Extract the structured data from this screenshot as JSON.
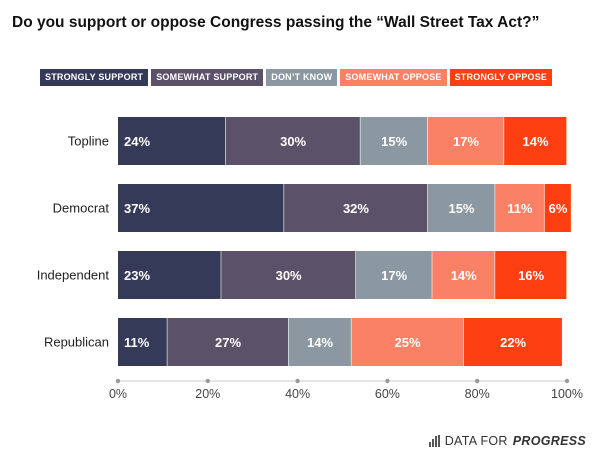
{
  "title": "Do you support or oppose Congress passing the “Wall Street Tax Act?”",
  "colors": {
    "strongly_support": "#363a59",
    "somewhat_support": "#5b5269",
    "dont_know": "#8b97a1",
    "somewhat_oppose": "#fb8166",
    "strongly_oppose": "#fe3f12"
  },
  "logo": {
    "prefix": "DATA FOR",
    "emphasis": "PROGRESS",
    "icon": "bar-chart-icon"
  },
  "chart_data": {
    "type": "bar",
    "orientation": "horizontal",
    "stacked": true,
    "title": "Do you support or oppose Congress passing the “Wall Street Tax Act?”",
    "categories": [
      "Topline",
      "Democrat",
      "Independent",
      "Republican"
    ],
    "series": [
      {
        "name": "STRONGLY SUPPORT",
        "color": "#363a59",
        "values": [
          24,
          37,
          23,
          11
        ]
      },
      {
        "name": "SOMEWHAT SUPPORT",
        "color": "#5b5269",
        "values": [
          30,
          32,
          30,
          27
        ]
      },
      {
        "name": "DON’T KNOW",
        "color": "#8b97a1",
        "values": [
          15,
          15,
          17,
          14
        ]
      },
      {
        "name": "SOMEWHAT OPPOSE",
        "color": "#fb8166",
        "values": [
          17,
          11,
          14,
          25
        ]
      },
      {
        "name": "STRONGLY OPPOSE",
        "color": "#fe3f12",
        "values": [
          14,
          6,
          16,
          22
        ]
      }
    ],
    "xlim": [
      0,
      100
    ],
    "xticks": [
      "0%",
      "20%",
      "40%",
      "60%",
      "80%",
      "100%"
    ],
    "legend": "top",
    "grid": false
  }
}
